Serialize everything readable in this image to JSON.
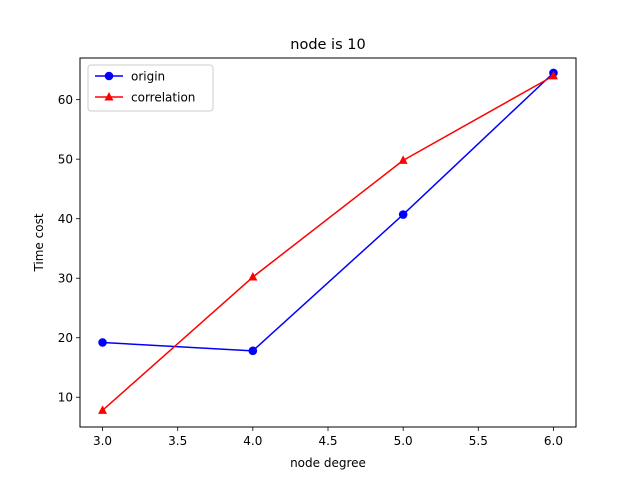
{
  "chart_data": {
    "type": "line",
    "title": "node is 10",
    "xlabel": "node degree",
    "ylabel": "Time cost",
    "xlim": [
      2.85,
      6.15
    ],
    "ylim": [
      5.0,
      67.0
    ],
    "xticks": [
      "3.0",
      "3.5",
      "4.0",
      "4.5",
      "5.0",
      "5.5",
      "6.0"
    ],
    "yticks": [
      "10",
      "20",
      "30",
      "40",
      "50",
      "60"
    ],
    "grid": false,
    "legend_position": "top-left",
    "series": [
      {
        "name": "origin",
        "color": "#0000ff",
        "marker": "circle",
        "x": [
          3.0,
          4.0,
          5.0,
          6.0
        ],
        "y": [
          19.2,
          17.8,
          40.7,
          64.5
        ]
      },
      {
        "name": "correlation",
        "color": "#ff0000",
        "marker": "triangle-up",
        "x": [
          3.0,
          4.0,
          5.0,
          6.0
        ],
        "y": [
          7.8,
          30.2,
          49.8,
          64.0
        ]
      }
    ]
  }
}
